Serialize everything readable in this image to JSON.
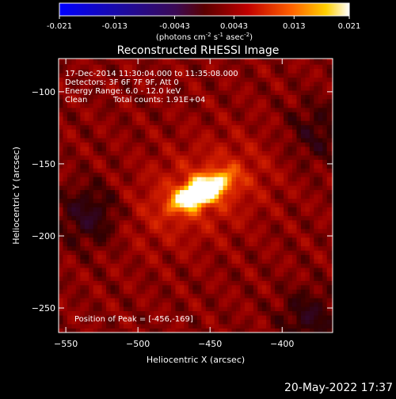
{
  "colorbar": {
    "tick_labels": [
      "-0.021",
      "-0.013",
      "-0.0043",
      "0.0043",
      "0.013",
      "0.021"
    ],
    "tick_values": [
      -0.021,
      -0.013,
      -0.0043,
      0.0043,
      0.013,
      0.021
    ],
    "range": [
      -0.021,
      0.021
    ],
    "units_main": "(photons cm",
    "units_sup1": "-2",
    "units_mid": " s",
    "units_sup2": "-1",
    "units_end": " asec",
    "units_sup3": "-2",
    "units_close": ")"
  },
  "chart_data": {
    "type": "heatmap",
    "title": "Reconstructed RHESSI Image",
    "xlabel": "Heliocentric X (arcsec)",
    "ylabel": "Heliocentric Y (arcsec)",
    "xlim": [
      -555,
      -365
    ],
    "ylim": [
      -267,
      -77
    ],
    "x_ticks": [
      -550,
      -500,
      -450,
      -400
    ],
    "y_ticks": [
      -100,
      -150,
      -200,
      -250
    ],
    "x_tick_labels": [
      "−550",
      "−500",
      "−450",
      "−400"
    ],
    "y_tick_labels": [
      "−100",
      "−150",
      "−200",
      "−250"
    ],
    "peak_position": [
      -456,
      -169
    ],
    "peak_value": 0.021,
    "colormap": "rainbow-red-yellow-white",
    "annotations": {
      "time_range": "17-Dec-2014 11:30:04.000 to 11:35:08.000",
      "detectors": "Detectors: 3F 6F 7F 9F, Att 0",
      "energy": "Energy Range: 6.0 - 12.0 keV",
      "method": "Clean",
      "counts": "Total counts: 1.91E+04",
      "peak": "Position of Peak = [-456,-169]"
    }
  },
  "footer": {
    "timestamp": "20-May-2022 17:37"
  }
}
